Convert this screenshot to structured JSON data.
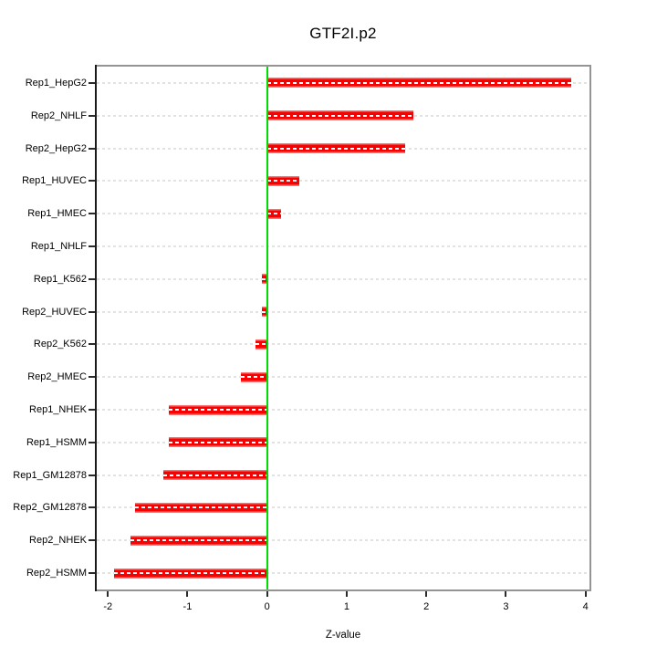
{
  "chart_data": {
    "type": "bar",
    "orientation": "horizontal",
    "title": "GTF2I.p2",
    "xlabel": "Z-value",
    "categories": [
      "Rep1_HepG2",
      "Rep2_NHLF",
      "Rep2_HepG2",
      "Rep1_HUVEC",
      "Rep1_HMEC",
      "Rep1_NHLF",
      "Rep1_K562",
      "Rep2_HUVEC",
      "Rep2_K562",
      "Rep2_HMEC",
      "Rep1_NHEK",
      "Rep1_HSMM",
      "Rep1_GM12878",
      "Rep2_GM12878",
      "Rep2_NHEK",
      "Rep2_HSMM"
    ],
    "values": [
      3.82,
      1.84,
      1.73,
      0.4,
      0.17,
      -0.01,
      -0.06,
      -0.07,
      -0.15,
      -0.33,
      -1.23,
      -1.24,
      -1.3,
      -1.66,
      -1.72,
      -1.92
    ],
    "xlim": [
      -2.14,
      4.05
    ],
    "xticks": [
      -2,
      -1,
      0,
      1,
      2,
      3,
      4
    ],
    "xtick_labels": [
      "-2",
      "-1",
      "0",
      "1",
      "2",
      "3",
      "4"
    ],
    "grid": true,
    "legend_position": "none",
    "colors": {
      "bar_fill": "#fa0000",
      "bar_edge_highlight": "rgba(255,255,255,0.45)",
      "bar_stripe": "#ffffff",
      "zero_line": "#00dd00",
      "gridline": "#e2e2e2",
      "box_border": "#949494",
      "axis_line": "#1a1a1a",
      "tick": "#2a2a2a",
      "text": "#000000",
      "background": "#ffffff"
    }
  }
}
